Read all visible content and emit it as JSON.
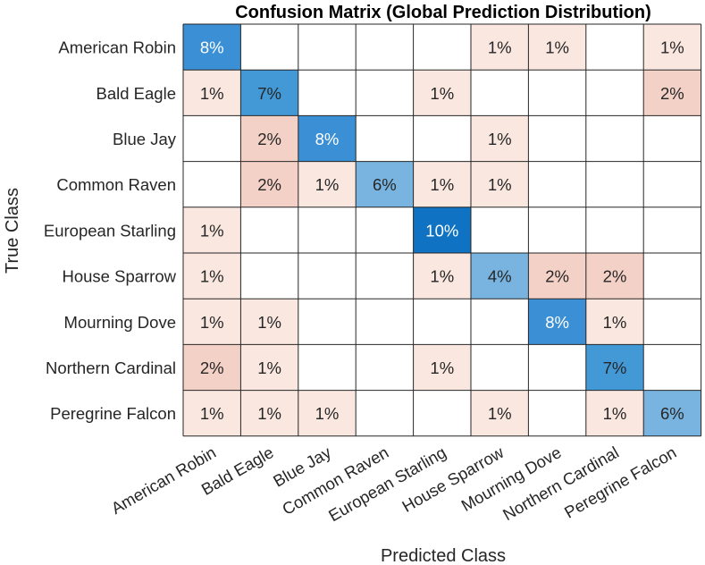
{
  "chart_data": {
    "type": "heatmap",
    "title": "Confusion Matrix (Global Prediction Distribution)",
    "xlabel": "Predicted Class",
    "ylabel": "True Class",
    "classes": [
      "American Robin",
      "Bald Eagle",
      "Blue Jay",
      "Common Raven",
      "European Starling",
      "House Sparrow",
      "Mourning Dove",
      "Northern Cardinal",
      "Peregrine Falcon"
    ],
    "value_suffix": "%",
    "matrix": [
      [
        8,
        0,
        0,
        0,
        0,
        1,
        1,
        0,
        1
      ],
      [
        1,
        7,
        0,
        0,
        1,
        0,
        0,
        0,
        2
      ],
      [
        0,
        2,
        8,
        0,
        0,
        1,
        0,
        0,
        0
      ],
      [
        0,
        2,
        1,
        6,
        1,
        1,
        0,
        0,
        0
      ],
      [
        1,
        0,
        0,
        0,
        10,
        0,
        0,
        0,
        0
      ],
      [
        1,
        0,
        0,
        0,
        1,
        4,
        2,
        2,
        0
      ],
      [
        1,
        1,
        0,
        0,
        0,
        0,
        8,
        1,
        0
      ],
      [
        2,
        1,
        0,
        0,
        1,
        0,
        0,
        7,
        0
      ],
      [
        1,
        1,
        1,
        0,
        0,
        1,
        0,
        1,
        6
      ]
    ],
    "diagonal_colors": {
      "4": "#78b4df",
      "6": "#78b4df",
      "7": "#4399d6",
      "8": "#3b8fd4",
      "10": "#0f72c2"
    },
    "off_diagonal_colors": {
      "1": "#f9e7e0",
      "2": "#f4d1c6"
    },
    "grid_color": "#262626"
  }
}
